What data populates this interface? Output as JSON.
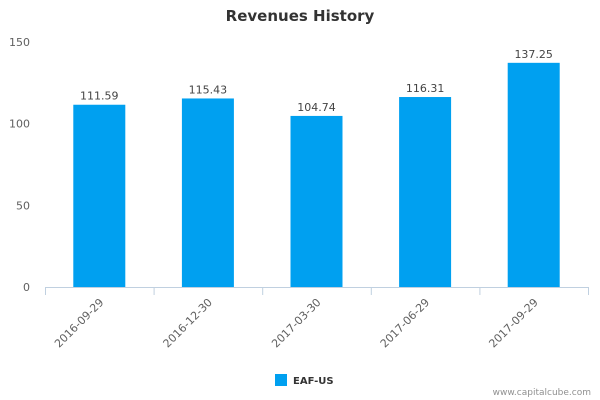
{
  "chart_data": {
    "type": "bar",
    "title": "Revenues History",
    "categories": [
      "2016-09-29",
      "2016-12-30",
      "2017-03-30",
      "2017-06-29",
      "2017-09-29"
    ],
    "series": [
      {
        "name": "EAF-US",
        "values": [
          111.59,
          115.43,
          104.74,
          116.31,
          137.25
        ],
        "value_labels": [
          "111.59",
          "115.43",
          "104.74",
          "116.31",
          "137.25"
        ],
        "color": "#00a0f0"
      }
    ],
    "ylim": [
      0,
      150
    ],
    "yticks": [
      0,
      50,
      100,
      150
    ],
    "ytick_labels": [
      "0",
      "50",
      "100",
      "150"
    ],
    "grid": false,
    "legend": "bottom-center"
  },
  "credit": "www.capitalcube.com",
  "colors": {
    "bar": "#00a0f0",
    "axis": "#c0d0e0"
  }
}
